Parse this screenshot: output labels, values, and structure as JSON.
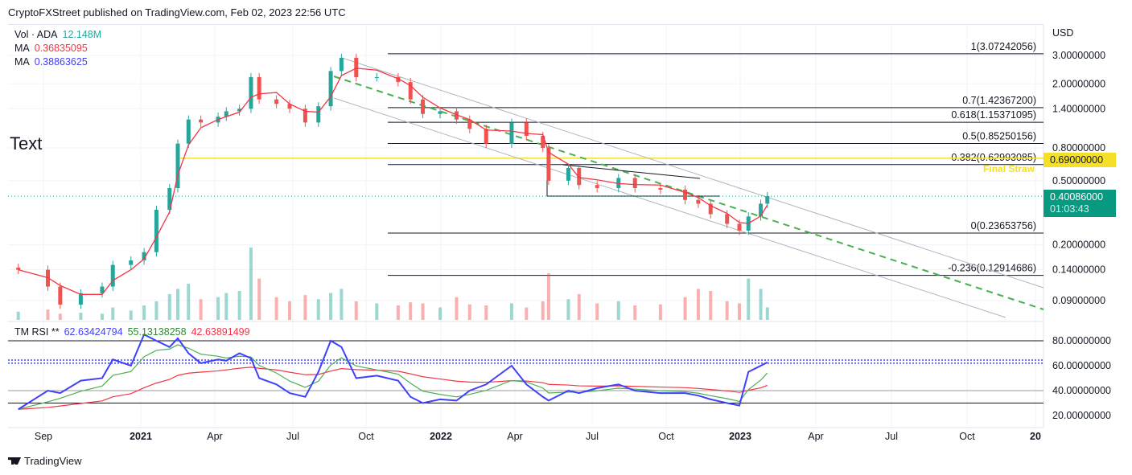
{
  "header": {
    "published": "CryptoFXStreet published on TradingView.com, Feb 02, 2023 22:56 UTC"
  },
  "legend": {
    "vol_label": "Vol · ADA",
    "vol_value": "12.148M",
    "ma1_label": "MA",
    "ma1_value": "0.36835095",
    "ma2_label": "MA",
    "ma2_value": "0.38863625",
    "rsi_label": "TM RSI **",
    "rsi_value": "62.63424794",
    "rsi_ma1_value": "55.13138258",
    "rsi_ma2_value": "42.63891499"
  },
  "annotation_text": "Text",
  "currency": "USD",
  "price_axis": [
    "3.00000000",
    "2.00000000",
    "1.40000000",
    "0.80000000",
    "0.50000000",
    "0.20000000",
    "0.14000000",
    "0.09000000"
  ],
  "rsi_axis": [
    "80.00000000",
    "60.00000000",
    "40.00000000",
    "20.00000000"
  ],
  "time_axis": [
    "Sep",
    "2021",
    "Apr",
    "Jul",
    "Oct",
    "2022",
    "Apr",
    "Jul",
    "Oct",
    "2023",
    "Apr",
    "Jul",
    "Oct",
    "20"
  ],
  "final_straw": {
    "label": "Final Straw",
    "price_tag": "0.69000000",
    "color": "#f5e027"
  },
  "last_price": {
    "value": "0.40086000",
    "countdown": "01:03:43",
    "color": "#089981"
  },
  "fib_levels": [
    {
      "label": "1(3.07242056)",
      "price": 3.07242056
    },
    {
      "label": "0.7(1.42367200)",
      "price": 1.423672
    },
    {
      "label": "0.618(1.15371095)",
      "price": 1.15371095
    },
    {
      "label": "0.5(0.85250156)",
      "price": 0.85250156
    },
    {
      "label": "0.382(0.62993085)",
      "price": 0.62993085
    },
    {
      "label": "0(0.23653756)",
      "price": 0.23653756
    },
    {
      "label": "-0.236(0.12914686)",
      "price": 0.12914686
    }
  ],
  "branding": {
    "logo_text": "TradingView"
  },
  "colors": {
    "up": "#26a69a",
    "down": "#ef5350",
    "ma": "#f23645",
    "rsi": "#3f3fff",
    "rsi_ma1": "#4caf50",
    "rsi_ma2": "#f23645",
    "trend": "#4caf50"
  },
  "chart_data": {
    "type": "candlestick",
    "symbol": "ADA",
    "scale": "log",
    "ylim": [
      0.07,
      4.0
    ],
    "dates": [
      "2020-08-05",
      "2020-09-10",
      "2020-09-25",
      "2020-10-20",
      "2020-11-15",
      "2020-11-28",
      "2020-12-20",
      "2021-01-05",
      "2021-01-20",
      "2021-02-05",
      "2021-02-15",
      "2021-02-28",
      "2021-03-15",
      "2021-04-05",
      "2021-04-15",
      "2021-05-01",
      "2021-05-15",
      "2021-05-25",
      "2021-06-15",
      "2021-07-01",
      "2021-07-20",
      "2021-08-05",
      "2021-08-20",
      "2021-09-02",
      "2021-09-20",
      "2021-10-15",
      "2021-11-10",
      "2021-11-25",
      "2021-12-10",
      "2021-12-31",
      "2022-01-20",
      "2022-02-05",
      "2022-02-25",
      "2022-03-28",
      "2022-04-15",
      "2022-05-05",
      "2022-05-12",
      "2022-06-05",
      "2022-06-18",
      "2022-07-10",
      "2022-08-05",
      "2022-08-25",
      "2022-09-25",
      "2022-10-25",
      "2022-11-10",
      "2022-11-25",
      "2022-12-15",
      "2022-12-30",
      "2023-01-10",
      "2023-01-25",
      "2023-02-02"
    ],
    "close": [
      0.14,
      0.11,
      0.085,
      0.1,
      0.11,
      0.15,
      0.16,
      0.18,
      0.33,
      0.45,
      0.85,
      1.2,
      1.15,
      1.25,
      1.35,
      1.4,
      2.2,
      1.6,
      1.5,
      1.4,
      1.15,
      1.45,
      2.4,
      2.9,
      2.2,
      2.2,
      2.05,
      1.6,
      1.3,
      1.35,
      1.2,
      1.05,
      0.85,
      1.15,
      0.95,
      0.8,
      0.5,
      0.6,
      0.47,
      0.45,
      0.52,
      0.45,
      0.44,
      0.38,
      0.36,
      0.31,
      0.27,
      0.245,
      0.3,
      0.36,
      0.40086
    ],
    "volume_m": [
      8,
      10,
      6,
      7,
      6,
      12,
      9,
      14,
      18,
      25,
      30,
      35,
      20,
      22,
      26,
      28,
      70,
      40,
      22,
      18,
      24,
      20,
      26,
      30,
      18,
      16,
      14,
      17,
      16,
      12,
      22,
      15,
      14,
      16,
      12,
      18,
      45,
      20,
      25,
      16,
      18,
      14,
      15,
      22,
      30,
      28,
      18,
      16,
      40,
      30,
      12.148
    ],
    "rsi": [
      25,
      40,
      38,
      48,
      50,
      65,
      60,
      85,
      80,
      75,
      82,
      70,
      62,
      65,
      64,
      70,
      66,
      50,
      45,
      38,
      35,
      55,
      80,
      75,
      50,
      52,
      48,
      35,
      30,
      33,
      32,
      40,
      45,
      60,
      45,
      35,
      32,
      40,
      38,
      42,
      45,
      40,
      38,
      38,
      36,
      33,
      30,
      28,
      55,
      60,
      62.63
    ],
    "rsi_levels": [
      80,
      64.5,
      62,
      40,
      30
    ],
    "rsi_ylim": [
      15,
      90
    ]
  }
}
